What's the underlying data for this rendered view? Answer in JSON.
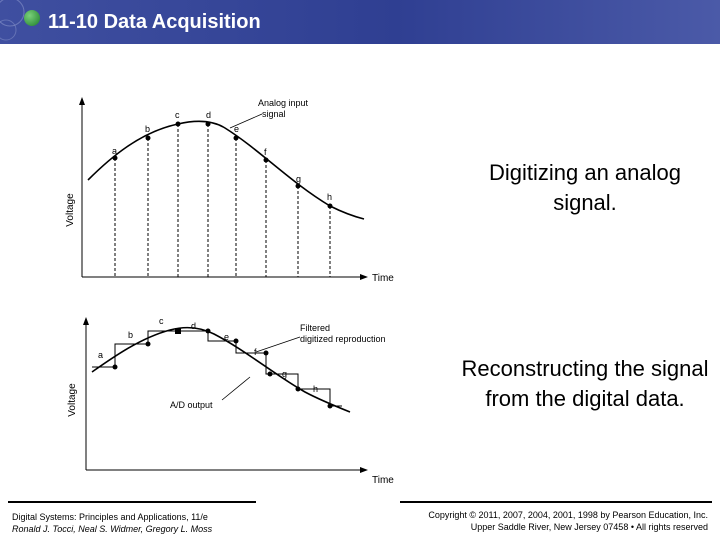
{
  "header": {
    "title": "11-10 Data Acquisition"
  },
  "captions": {
    "top": "Digitizing an analog signal.",
    "bottom": "Reconstructing the signal from the digital data."
  },
  "top_diagram": {
    "ylabel": "Voltage",
    "xlabel": "Time",
    "curve_label_line1": "Analog input",
    "curve_label_line2": "signal",
    "points": [
      "a",
      "b",
      "c",
      "d",
      "e",
      "f",
      "g",
      "h"
    ]
  },
  "bottom_diagram": {
    "ylabel": "Voltage",
    "xlabel": "Time",
    "filter_label_line1": "Filtered",
    "filter_label_line2": "digitized reproduction",
    "ad_label": "A/D output",
    "points": [
      "a",
      "b",
      "c",
      "d",
      "e",
      "f",
      "g",
      "h"
    ]
  },
  "footer": {
    "left_line1": "Digital Systems: Principles and Applications, 11/e",
    "left_line2": "Ronald J. Tocci, Neal S. Widmer, Gregory L. Moss",
    "right_line1": "Copyright © 2011, 2007, 2004, 2001, 1998 by Pearson Education, Inc.",
    "right_line2": "Upper Saddle River, New Jersey 07458 • All rights reserved"
  }
}
